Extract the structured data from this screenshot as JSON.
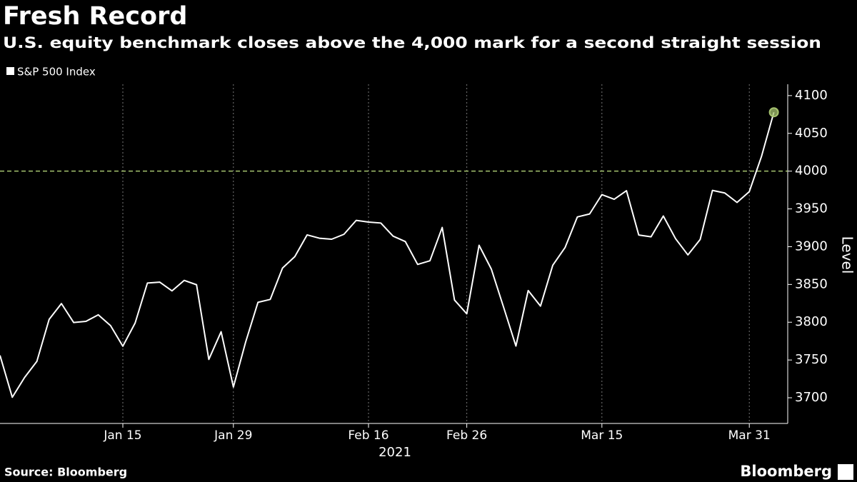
{
  "chart_data": {
    "type": "line",
    "title": "Fresh Record",
    "subtitle": "U.S. equity benchmark closes above the 4,000 mark for a second straight session",
    "ylabel": "Level",
    "xlabel": "2021",
    "source": "Source: Bloomberg",
    "brand": "Bloomberg",
    "categories": [
      null,
      null,
      null,
      null,
      null,
      null,
      null,
      null,
      null,
      null,
      "Jan 15",
      null,
      null,
      null,
      null,
      null,
      null,
      null,
      null,
      "Jan 29",
      null,
      null,
      null,
      null,
      null,
      null,
      null,
      null,
      null,
      null,
      "Feb 16",
      null,
      null,
      null,
      null,
      null,
      null,
      null,
      "Feb 26",
      null,
      null,
      null,
      null,
      null,
      null,
      null,
      null,
      null,
      null,
      "Mar 15",
      null,
      null,
      null,
      null,
      null,
      null,
      null,
      null,
      null,
      null,
      null,
      "Mar 31",
      null,
      null
    ],
    "series": [
      {
        "name": "S&P 500 Index",
        "color": "#ffffff",
        "values": [
          3756.07,
          3700.65,
          3726.86,
          3748.14,
          3803.79,
          3824.68,
          3799.61,
          3801.19,
          3809.84,
          3795.54,
          3768.25,
          3798.91,
          3851.85,
          3853.07,
          3841.47,
          3855.36,
          3849.62,
          3750.77,
          3787.38,
          3714.24,
          3773.86,
          3826.31,
          3830.17,
          3871.74,
          3886.83,
          3915.59,
          3911.23,
          3909.88,
          3916.38,
          3934.83,
          3932.59,
          3931.33,
          3913.97,
          3906.71,
          3876.5,
          3881.37,
          3925.43,
          3829.34,
          3811.15,
          3901.82,
          3870.29,
          3819.72,
          3768.47,
          3841.94,
          3821.35,
          3875.44,
          3898.81,
          3939.34,
          3943.34,
          3968.94,
          3962.71,
          3974.12,
          3915.46,
          3913.1,
          3940.59,
          3910.52,
          3889.14,
          3909.52,
          3974.54,
          3971.09,
          3958.55,
          3972.89,
          4019.87,
          4077.91
        ]
      }
    ],
    "reference_line": {
      "value": 4000,
      "color": "#a6c36f"
    },
    "last_point_marker_color": "#a6c36f",
    "ylim": [
      3666,
      4115
    ],
    "yticks": [
      3700,
      3750,
      3800,
      3850,
      3900,
      3950,
      4000,
      4050,
      4100
    ],
    "grid": true,
    "legend": "top-left"
  }
}
